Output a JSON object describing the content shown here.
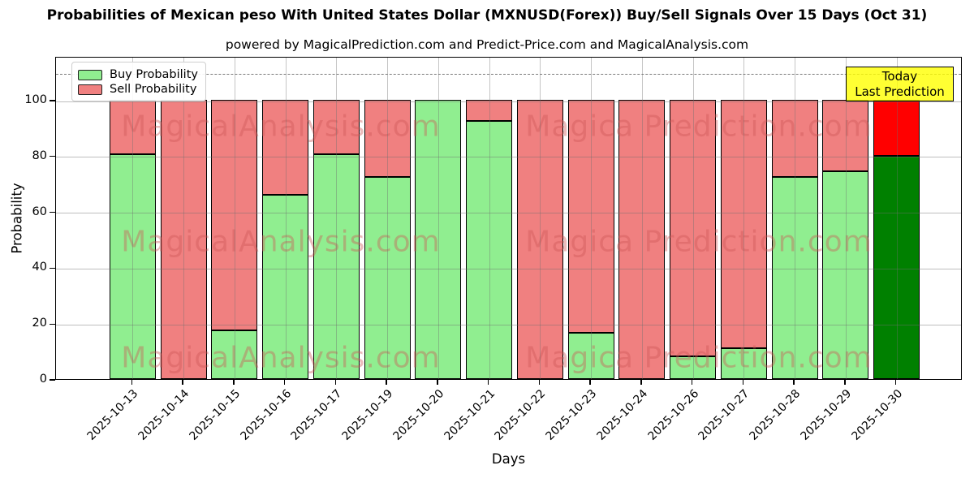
{
  "chart_data": {
    "type": "bar",
    "stacked": true,
    "title": "Probabilities of Mexican peso With United States Dollar (MXNUSD(Forex)) Buy/Sell Signals Over 15 Days (Oct 31)",
    "subtitle": "powered by MagicalPrediction.com and Predict-Price.com and MagicalAnalysis.com",
    "xlabel": "Days",
    "ylabel": "Probability",
    "categories": [
      "2025-10-13",
      "2025-10-14",
      "2025-10-15",
      "2025-10-16",
      "2025-10-17",
      "2025-10-19",
      "2025-10-20",
      "2025-10-21",
      "2025-10-22",
      "2025-10-23",
      "2025-10-24",
      "2025-10-26",
      "2025-10-27",
      "2025-10-28",
      "2025-10-29",
      "2025-10-30"
    ],
    "series": [
      {
        "name": "Buy Probability",
        "color": "#90EE90",
        "values": [
          80.5,
          0,
          17.5,
          66,
          80.5,
          72.5,
          100,
          92.5,
          0,
          16.5,
          0,
          8,
          11,
          72.5,
          74.5,
          80
        ]
      },
      {
        "name": "Sell Probability",
        "color": "#F08080",
        "values": [
          19.5,
          100,
          82.5,
          34,
          19.5,
          27.5,
          0,
          7.5,
          100,
          83.5,
          100,
          92,
          89,
          27.5,
          25.5,
          20
        ]
      }
    ],
    "today_bar": {
      "category": "2025-10-30",
      "buy_color": "#008000",
      "sell_color": "#FF0000"
    },
    "yticks": [
      0,
      20,
      40,
      60,
      80,
      100
    ],
    "ylim": [
      0,
      115.7
    ],
    "dashed_line_y": 110,
    "grid": true,
    "legend_position": "upper left"
  },
  "annotation": {
    "line1": "Today",
    "line2": "Last Prediction",
    "bg_color": "#FFFF00"
  },
  "watermarks": {
    "left": "MagicalAnalysis.com",
    "right": "Magica Prediction.com"
  }
}
